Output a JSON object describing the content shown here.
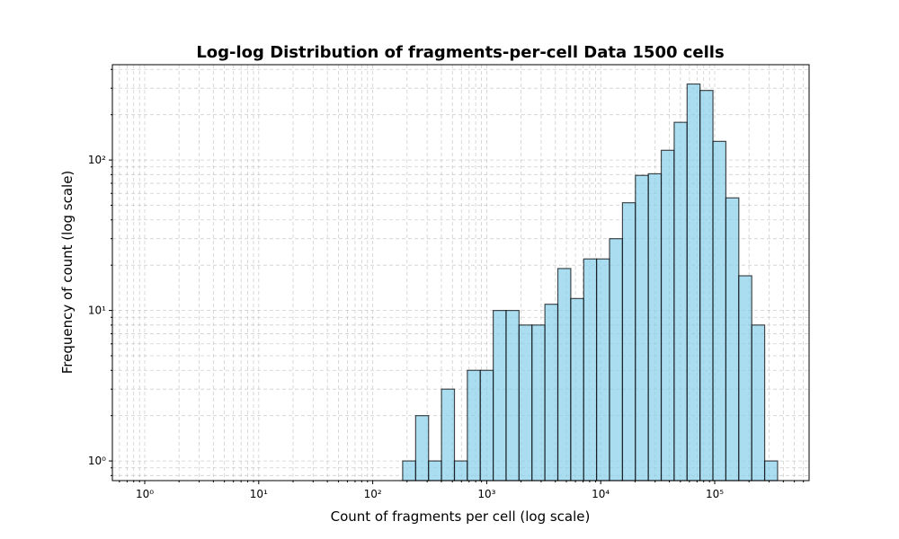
{
  "chart_data": {
    "type": "histogram",
    "title": "Log-log Distribution of fragments-per-cell Data 1500 cells",
    "xlabel": "Count of fragments per cell (log scale)",
    "ylabel": "Frequency of count (log scale)",
    "bins": [
      183,
      238,
      309,
      401,
      521,
      676,
      878,
      1140,
      1480,
      1921,
      2495,
      3239,
      4206,
      5462,
      7090,
      9204,
      11950,
      15520,
      20150,
      26160,
      33960,
      44100,
      57250,
      74330,
      96520,
      125300,
      162700,
      211300,
      274300,
      356200
    ],
    "counts": [
      1,
      2,
      1,
      3,
      1,
      4,
      4,
      10,
      10,
      8,
      8,
      11,
      19,
      12,
      22,
      22,
      30,
      52,
      79,
      81,
      116,
      178,
      320,
      290,
      133,
      56,
      17,
      8,
      1
    ],
    "color": "#87ceeb",
    "edgecolor": "#000000",
    "alpha": 0.7,
    "xscale": "log",
    "yscale": "log",
    "xlim": [
      0.52,
      673000
    ],
    "ylim": [
      0.74,
      430
    ],
    "xticks": [
      {
        "value": 1,
        "label": "10⁰"
      },
      {
        "value": 10,
        "label": "10¹"
      },
      {
        "value": 100,
        "label": "10²"
      },
      {
        "value": 1000,
        "label": "10³"
      },
      {
        "value": 10000,
        "label": "10⁴"
      },
      {
        "value": 100000,
        "label": "10⁵"
      }
    ],
    "yticks": [
      {
        "value": 1,
        "label": "10⁰"
      },
      {
        "value": 10,
        "label": "10¹"
      },
      {
        "value": 100,
        "label": "10²"
      }
    ],
    "xminorticks": [
      0.6,
      0.7,
      0.8,
      0.9,
      2,
      3,
      4,
      5,
      6,
      7,
      8,
      9,
      20,
      30,
      40,
      50,
      60,
      70,
      80,
      90,
      200,
      300,
      400,
      500,
      600,
      700,
      800,
      900,
      2000,
      3000,
      4000,
      5000,
      6000,
      7000,
      8000,
      9000,
      20000,
      30000,
      40000,
      50000,
      60000,
      70000,
      80000,
      90000,
      200000,
      300000,
      400000,
      500000,
      600000
    ],
    "yminorticks": [
      0.8,
      0.9,
      2,
      3,
      4,
      5,
      6,
      7,
      8,
      9,
      20,
      30,
      40,
      50,
      60,
      70,
      80,
      90,
      200,
      300,
      400
    ],
    "grid": true
  }
}
